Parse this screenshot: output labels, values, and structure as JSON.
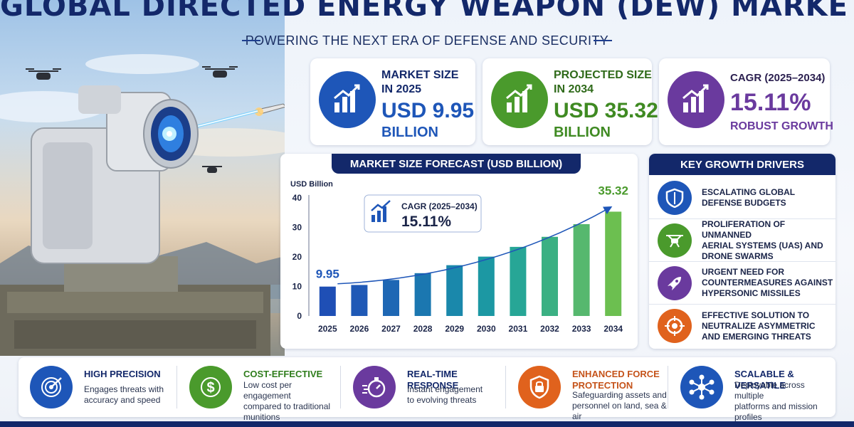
{
  "header": {
    "title": "GLOBAL DIRECTED ENERGY WEAPON (DEW) MARKET",
    "subtitle": "POWERING THE NEXT ERA OF DEFENSE AND SECURITY"
  },
  "kpis": [
    {
      "label": "MARKET SIZE\nIN 2025",
      "value": "USD 9.95",
      "unit": "BILLION",
      "color": "#1e56b8",
      "icon": "growth-chart-icon"
    },
    {
      "label": "PROJECTED SIZE\nIN 2034",
      "value": "USD 35.32",
      "unit": "BILLION",
      "color": "#4a9a2c",
      "icon": "growth-chart-icon"
    },
    {
      "label": "CAGR (2025–2034)",
      "value": "15.11%",
      "unit": "ROBUST GROWTH",
      "color": "#6a3a9e",
      "icon": "growth-chart-icon"
    }
  ],
  "forecast": {
    "title": "MARKET SIZE FORECAST (USD BILLION)",
    "callout_label": "CAGR (2025–2034)",
    "callout_value": "15.11%"
  },
  "chart_data": {
    "type": "bar",
    "title": "MARKET SIZE FORECAST (USD BILLION)",
    "ylabel": "USD Billion",
    "categories": [
      "2025",
      "2026",
      "2027",
      "2028",
      "2029",
      "2030",
      "2031",
      "2032",
      "2033",
      "2034"
    ],
    "values": [
      9.95,
      10.5,
      12.2,
      14.5,
      17.2,
      20.1,
      23.4,
      26.8,
      31.1,
      35.32
    ],
    "data_labels": {
      "0": "9.95",
      "9": "35.32"
    },
    "ylim": [
      0,
      40
    ],
    "yticks": [
      "0",
      "10",
      "20",
      "30",
      "40"
    ],
    "grid": false,
    "annotation": "CAGR (2025–2034) 15.11%",
    "bar_colors": [
      "#1f4fb5",
      "#1f59b6",
      "#1e67b4",
      "#1b77b0",
      "#1a88ab",
      "#1c98a3",
      "#27a696",
      "#3bb083",
      "#56b86e",
      "#6cbf50"
    ]
  },
  "drivers": {
    "title": "KEY GROWTH DRIVERS",
    "items": [
      {
        "text": "ESCALATING GLOBAL\nDEFENSE BUDGETS",
        "icon": "shield-icon",
        "color": "#1e56b8"
      },
      {
        "text": "PROLIFERATION OF UNMANNED\nAERIAL SYSTEMS (UAS) AND\nDRONE SWARMS",
        "icon": "drone-icon",
        "color": "#4a9a2c"
      },
      {
        "text": "URGENT NEED FOR\nCOUNTERMEASURES AGAINST\nHYPERSONIC MISSILES",
        "icon": "rocket-icon",
        "color": "#6a3a9e"
      },
      {
        "text": "EFFECTIVE SOLUTION TO\nNEUTRALIZE ASYMMETRIC\nAND EMERGING THREATS",
        "icon": "target-icon",
        "color": "#e0621d"
      }
    ]
  },
  "benefits": [
    {
      "title": "HIGH PRECISION",
      "desc": "Engages threats with\naccuracy and speed",
      "icon": "target-icon",
      "color": "#1e56b8",
      "title_color": "#13286a"
    },
    {
      "title": "COST-EFFECTIVE",
      "desc": "Low cost per engagement\ncompared to traditional\nmunitions",
      "icon": "dollar-icon",
      "color": "#4a9a2c",
      "title_color": "#2f7d1c"
    },
    {
      "title": "REAL-TIME RESPONSE",
      "desc": "Instant engagement\nto evolving threats",
      "icon": "stopwatch-icon",
      "color": "#6a3a9e",
      "title_color": "#13286a"
    },
    {
      "title": "ENHANCED FORCE\nPROTECTION",
      "desc": "Safeguarding assets and\npersonnel on land, sea & air",
      "icon": "shield-icon",
      "color": "#e0621d",
      "title_color": "#c5531a"
    },
    {
      "title": "SCALABLE & VERSATILE",
      "desc": "Deployable across multiple\nplatforms and mission\nprofiles",
      "icon": "network-icon",
      "color": "#1e56b8",
      "title_color": "#13286a"
    }
  ]
}
